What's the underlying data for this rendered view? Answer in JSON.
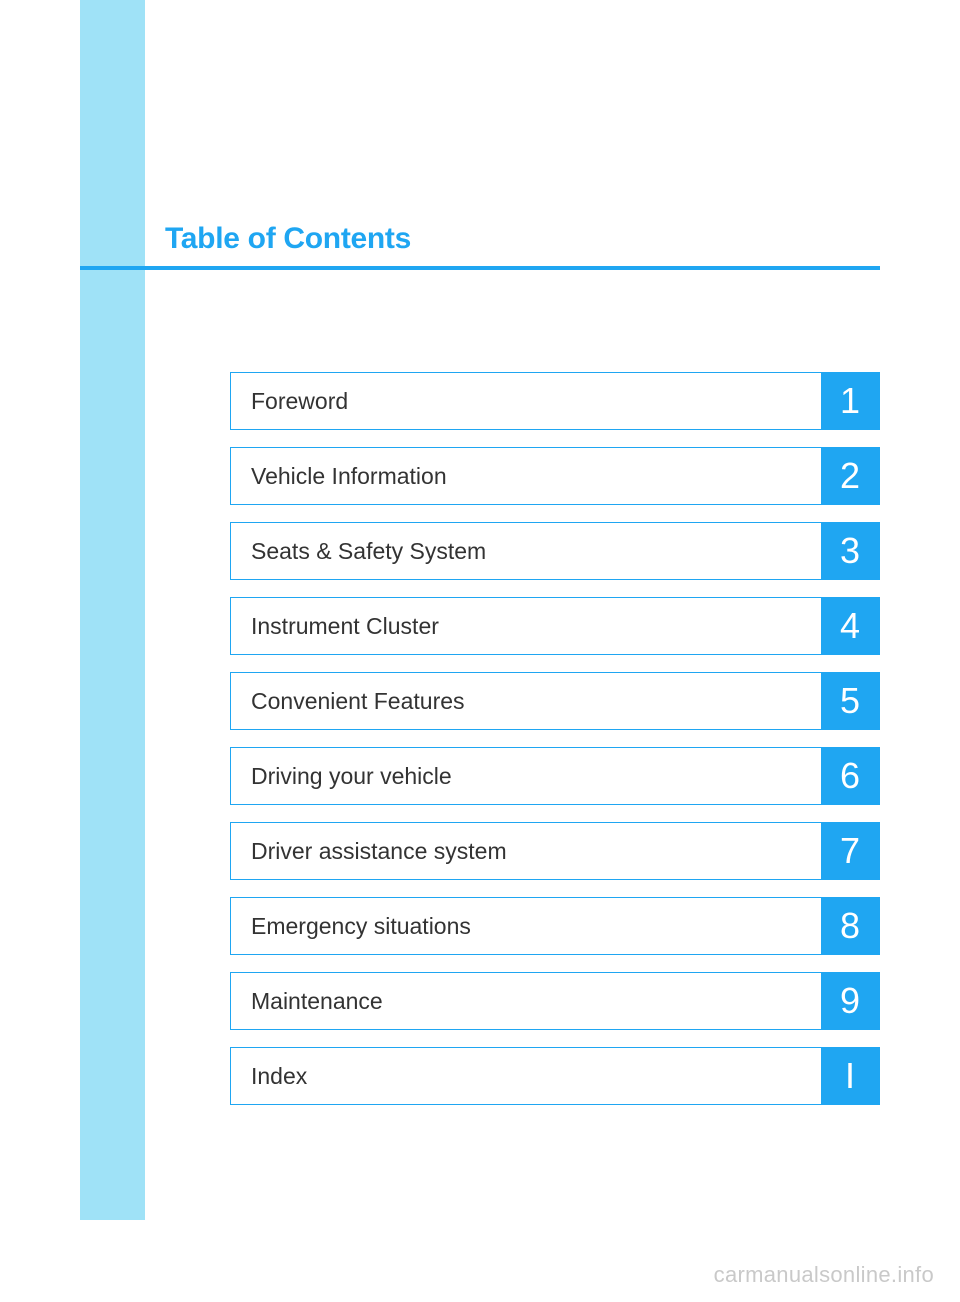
{
  "title": "Table of Contents",
  "accent_color": "#1fa6f2",
  "sidebar_color": "#9fe2f7",
  "text_color": "#333333",
  "watermark_color": "#c9c9c9",
  "background_color": "#ffffff",
  "title_fontsize": 30,
  "label_fontsize": 23,
  "number_fontsize": 36,
  "items": [
    {
      "label": "Foreword",
      "number": "1"
    },
    {
      "label": "Vehicle Information",
      "number": "2"
    },
    {
      "label": "Seats & Safety System",
      "number": "3"
    },
    {
      "label": "Instrument Cluster",
      "number": "4"
    },
    {
      "label": "Convenient Features",
      "number": "5"
    },
    {
      "label": "Driving your vehicle",
      "number": "6"
    },
    {
      "label": "Driver assistance system",
      "number": "7"
    },
    {
      "label": "Emergency situations",
      "number": "8"
    },
    {
      "label": "Maintenance",
      "number": "9"
    },
    {
      "label": "Index",
      "number": "I"
    }
  ],
  "watermark": "carmanualsonline.info"
}
